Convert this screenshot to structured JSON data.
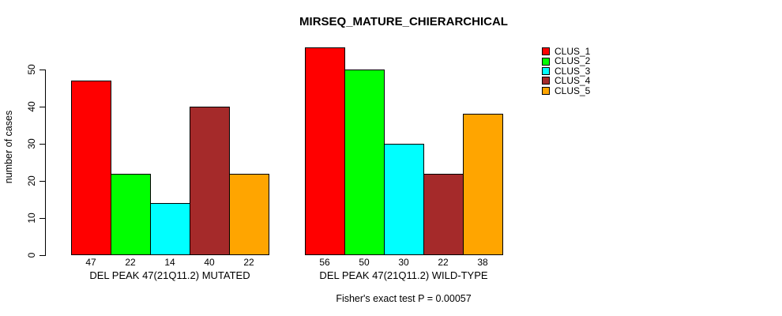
{
  "title": "MIRSEQ_MATURE_CHIERARCHICAL",
  "footer": "Fisher's exact test P = 0.00057",
  "chart_data": {
    "type": "bar",
    "title": "MIRSEQ_MATURE_CHIERARCHICAL",
    "ylabel": "number of cases",
    "xlabel": "",
    "ylim": [
      0,
      50
    ],
    "yticks": [
      0,
      10,
      20,
      30,
      40,
      50
    ],
    "grid": false,
    "legend_position": "top-right",
    "legend": [
      {
        "label": "CLUS_1",
        "color": "#FF0000"
      },
      {
        "label": "CLUS_2",
        "color": "#00FF00"
      },
      {
        "label": "CLUS_3",
        "color": "#00FFFF"
      },
      {
        "label": "CLUS_4",
        "color": "#A52A2A"
      },
      {
        "label": "CLUS_5",
        "color": "#FFA500"
      }
    ],
    "groups": [
      {
        "label": "DEL PEAK 47(21Q11.2) MUTATED",
        "series": [
          "CLUS_1",
          "CLUS_2",
          "CLUS_3",
          "CLUS_4",
          "CLUS_5"
        ],
        "values": [
          47,
          22,
          14,
          40,
          22
        ],
        "value_labels": [
          "47",
          "22",
          "14",
          "40",
          "22"
        ]
      },
      {
        "label": "DEL PEAK 47(21Q11.2) WILD-TYPE",
        "series": [
          "CLUS_1",
          "CLUS_2",
          "CLUS_3",
          "CLUS_4",
          "CLUS_5"
        ],
        "values": [
          56,
          50,
          30,
          22,
          38
        ],
        "value_labels": [
          "56",
          "50",
          "30",
          "22",
          "38"
        ]
      }
    ],
    "annotation": "Fisher's exact test P = 0.00057"
  }
}
